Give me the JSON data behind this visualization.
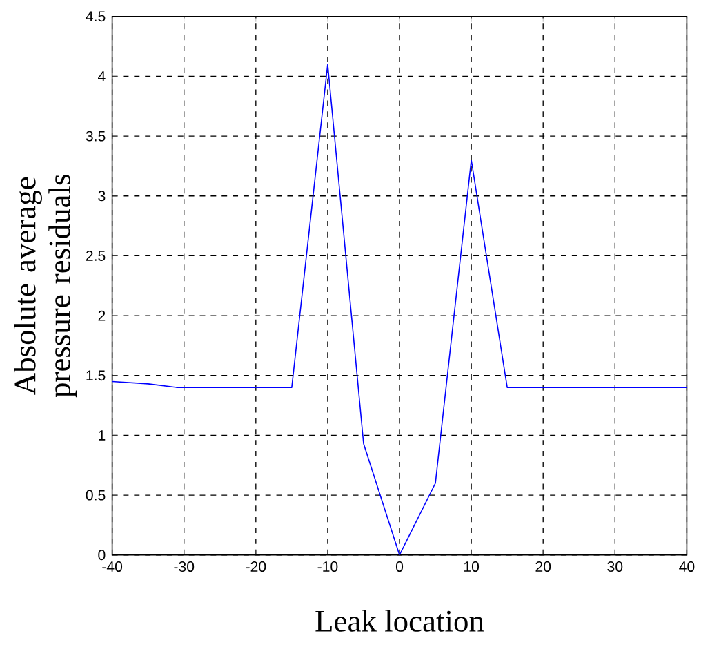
{
  "chart_data": {
    "type": "line",
    "xlabel": "Leak location",
    "ylabel": "Absolute average pressure  residuals",
    "x": [
      -40,
      -35,
      -31,
      -15,
      -10,
      -5,
      0,
      5,
      10,
      15,
      40
    ],
    "series": [
      {
        "color": "#0000ff",
        "values": [
          1.45,
          1.43,
          1.4,
          1.4,
          4.1,
          0.93,
          0,
          0.6,
          3.3,
          1.4,
          1.4
        ]
      }
    ],
    "xlim": [
      -40,
      40
    ],
    "xticks": [
      -40,
      -30,
      -20,
      -10,
      0,
      10,
      20,
      30,
      40
    ],
    "ylim": [
      0,
      4.5
    ],
    "yticks": [
      0,
      0.5,
      1,
      1.5,
      2,
      2.5,
      3,
      3.5,
      4,
      4.5
    ],
    "grid": true,
    "marker": "none",
    "line_style": "solid"
  }
}
